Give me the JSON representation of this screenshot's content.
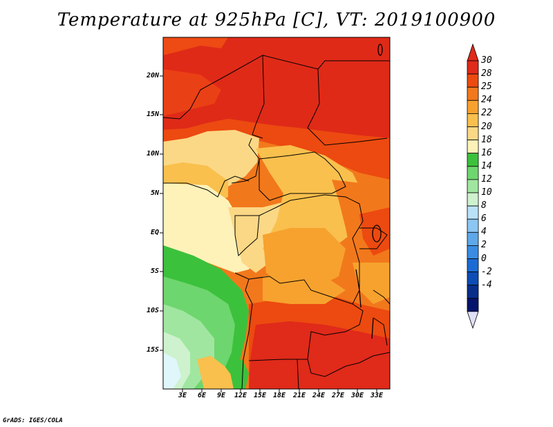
{
  "title": "Temperature at 925hPa [C], VT: 2019100900",
  "credit": "GrADS: IGES/COLA",
  "map": {
    "region": "Central Africa",
    "lat_labels": [
      "20N",
      "15N",
      "10N",
      "5N",
      "EQ",
      "5S",
      "10S",
      "15S"
    ],
    "lon_labels": [
      "3E",
      "6E",
      "9E",
      "12E",
      "15E",
      "18E",
      "21E",
      "24E",
      "27E",
      "30E",
      "33E"
    ]
  },
  "colorbar": {
    "labels": [
      "30",
      "28",
      "25",
      "24",
      "22",
      "20",
      "18",
      "16",
      "14",
      "12",
      "10",
      "8",
      "6",
      "4",
      "2",
      "0",
      "-2",
      "-4"
    ],
    "colors": [
      "#e02a1a",
      "#ec4a10",
      "#f2781c",
      "#f7a22e",
      "#f9c04d",
      "#fbd886",
      "#fef2b8",
      "#3cc13c",
      "#6ed66e",
      "#a0e6a0",
      "#cdf2cd",
      "#b9e2f8",
      "#8cc6f2",
      "#5ea8ea",
      "#3a8ce2",
      "#1a6cd4",
      "#0c4cb4",
      "#082e8a",
      "#04146a"
    ],
    "top_cap_color": "#e02a1a",
    "bottom_cap_color": "#e0e0f8"
  }
}
